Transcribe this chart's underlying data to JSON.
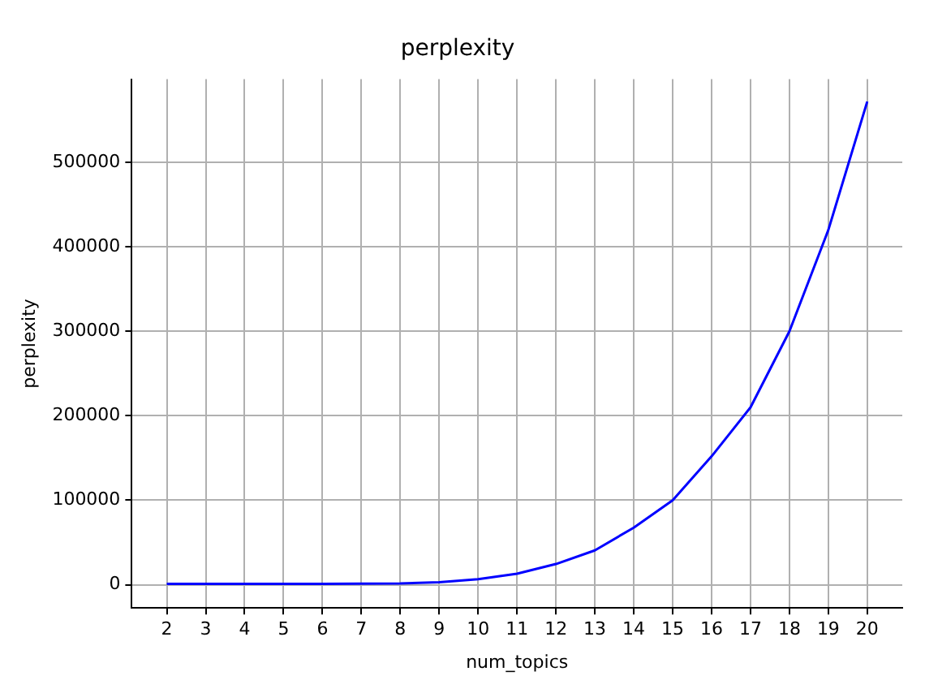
{
  "chart_data": {
    "type": "line",
    "title": "perplexity",
    "xlabel": "num_topics",
    "ylabel": "perplexity",
    "x": [
      2,
      3,
      4,
      5,
      6,
      7,
      8,
      9,
      10,
      11,
      12,
      13,
      14,
      15,
      16,
      17,
      18,
      19,
      20
    ],
    "series": [
      {
        "color": "#0000ff",
        "values": [
          1000,
          1000,
          1000,
          1000,
          1000,
          1200,
          1500,
          3000,
          6600,
          13000,
          24500,
          40700,
          67600,
          100000,
          152000,
          210000,
          300000,
          420000,
          572000
        ]
      }
    ],
    "xlim": [
      1.1,
      20.9
    ],
    "xticks": [
      2,
      3,
      4,
      5,
      6,
      7,
      8,
      9,
      10,
      11,
      12,
      13,
      14,
      15,
      16,
      17,
      18,
      19,
      20
    ],
    "ylim": [
      -27500,
      598500
    ],
    "yticks": [
      0,
      100000,
      200000,
      300000,
      400000,
      500000
    ],
    "grid": true,
    "legend": false,
    "marker": "none",
    "line_style": "solid"
  }
}
